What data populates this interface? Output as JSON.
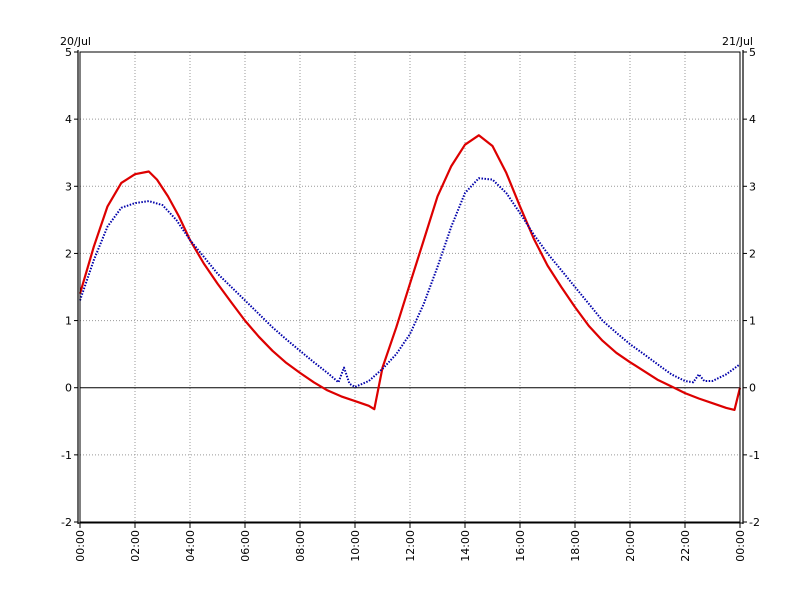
{
  "chart_data": {
    "type": "line",
    "x_unit": "time of day",
    "date_start_label": "20/Jul",
    "date_end_label": "21/Jul",
    "x_tick_labels": [
      "00:00",
      "02:00",
      "04:00",
      "06:00",
      "08:00",
      "10:00",
      "12:00",
      "14:00",
      "16:00",
      "18:00",
      "20:00",
      "22:00",
      "00:00"
    ],
    "x_tick_hours": [
      0,
      2,
      4,
      6,
      8,
      10,
      12,
      14,
      16,
      18,
      20,
      22,
      24
    ],
    "xlim": [
      0,
      24
    ],
    "ylim": [
      -2,
      5
    ],
    "y_ticks": [
      -2,
      -1,
      0,
      1,
      2,
      3,
      4,
      5
    ],
    "grid": true,
    "series": [
      {
        "color": "#dd0000",
        "style": "solid",
        "points": [
          [
            0,
            1.4
          ],
          [
            0.5,
            2.1
          ],
          [
            1,
            2.7
          ],
          [
            1.5,
            3.05
          ],
          [
            2,
            3.18
          ],
          [
            2.5,
            3.22
          ],
          [
            2.8,
            3.1
          ],
          [
            3.2,
            2.85
          ],
          [
            3.6,
            2.55
          ],
          [
            4,
            2.2
          ],
          [
            4.5,
            1.85
          ],
          [
            5,
            1.55
          ],
          [
            5.5,
            1.27
          ],
          [
            6,
            1.0
          ],
          [
            6.5,
            0.76
          ],
          [
            7,
            0.55
          ],
          [
            7.5,
            0.37
          ],
          [
            8,
            0.22
          ],
          [
            8.5,
            0.08
          ],
          [
            9,
            -0.04
          ],
          [
            9.5,
            -0.13
          ],
          [
            10,
            -0.2
          ],
          [
            10.5,
            -0.27
          ],
          [
            10.7,
            -0.32
          ],
          [
            11,
            0.3
          ],
          [
            11.5,
            0.9
          ],
          [
            12,
            1.55
          ],
          [
            12.5,
            2.2
          ],
          [
            13,
            2.85
          ],
          [
            13.5,
            3.3
          ],
          [
            14,
            3.62
          ],
          [
            14.5,
            3.76
          ],
          [
            15,
            3.6
          ],
          [
            15.5,
            3.2
          ],
          [
            16,
            2.7
          ],
          [
            16.5,
            2.22
          ],
          [
            17,
            1.82
          ],
          [
            17.5,
            1.5
          ],
          [
            18,
            1.2
          ],
          [
            18.5,
            0.92
          ],
          [
            19,
            0.7
          ],
          [
            19.5,
            0.52
          ],
          [
            20,
            0.38
          ],
          [
            20.5,
            0.25
          ],
          [
            21,
            0.12
          ],
          [
            21.5,
            0.02
          ],
          [
            22,
            -0.08
          ],
          [
            22.5,
            -0.16
          ],
          [
            23,
            -0.23
          ],
          [
            23.5,
            -0.3
          ],
          [
            23.8,
            -0.33
          ],
          [
            24,
            0
          ]
        ]
      },
      {
        "color": "#0000aa",
        "style": "dotted",
        "points": [
          [
            0,
            1.3
          ],
          [
            0.5,
            1.9
          ],
          [
            1,
            2.4
          ],
          [
            1.5,
            2.68
          ],
          [
            2,
            2.75
          ],
          [
            2.5,
            2.78
          ],
          [
            3,
            2.72
          ],
          [
            3.5,
            2.5
          ],
          [
            4,
            2.2
          ],
          [
            4.5,
            1.95
          ],
          [
            5,
            1.7
          ],
          [
            5.5,
            1.5
          ],
          [
            6,
            1.3
          ],
          [
            6.5,
            1.1
          ],
          [
            7,
            0.9
          ],
          [
            7.5,
            0.72
          ],
          [
            8,
            0.55
          ],
          [
            8.5,
            0.38
          ],
          [
            9,
            0.22
          ],
          [
            9.4,
            0.08
          ],
          [
            9.6,
            0.3
          ],
          [
            9.8,
            0.06
          ],
          [
            10,
            0.01
          ],
          [
            10.5,
            0.1
          ],
          [
            11,
            0.28
          ],
          [
            11.5,
            0.5
          ],
          [
            12,
            0.8
          ],
          [
            12.5,
            1.25
          ],
          [
            13,
            1.8
          ],
          [
            13.5,
            2.4
          ],
          [
            14,
            2.9
          ],
          [
            14.5,
            3.12
          ],
          [
            15,
            3.1
          ],
          [
            15.5,
            2.9
          ],
          [
            16,
            2.6
          ],
          [
            16.5,
            2.28
          ],
          [
            17,
            2.0
          ],
          [
            17.5,
            1.75
          ],
          [
            18,
            1.5
          ],
          [
            18.5,
            1.25
          ],
          [
            19,
            1.0
          ],
          [
            19.5,
            0.82
          ],
          [
            20,
            0.65
          ],
          [
            20.5,
            0.5
          ],
          [
            21,
            0.35
          ],
          [
            21.5,
            0.2
          ],
          [
            22,
            0.1
          ],
          [
            22.3,
            0.08
          ],
          [
            22.5,
            0.2
          ],
          [
            22.7,
            0.1
          ],
          [
            23,
            0.1
          ],
          [
            23.5,
            0.2
          ],
          [
            24,
            0.35
          ]
        ]
      }
    ]
  }
}
